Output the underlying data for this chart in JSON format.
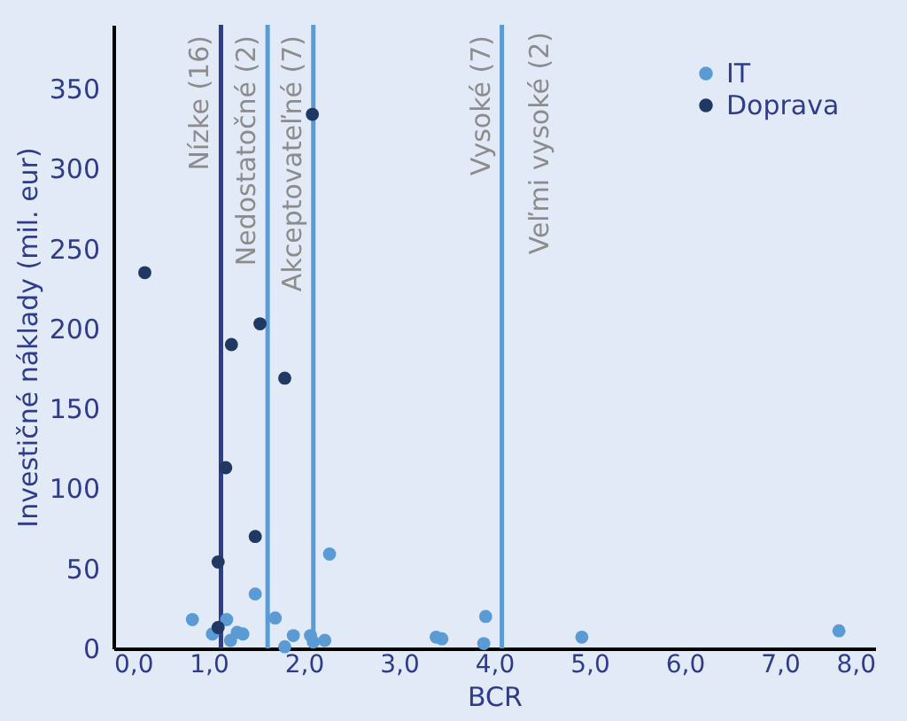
{
  "chart_data": {
    "type": "scatter",
    "xlabel": "BCR",
    "ylabel": "Investičné náklady (mil. eur)",
    "xlim": [
      0,
      8
    ],
    "ylim": [
      0,
      390
    ],
    "xticks": [
      {
        "value": 0,
        "label": "0,0"
      },
      {
        "value": 1,
        "label": "1,0"
      },
      {
        "value": 2,
        "label": "2,0"
      },
      {
        "value": 3,
        "label": "3,0"
      },
      {
        "value": 4,
        "label": "4,0"
      },
      {
        "value": 5,
        "label": "5,0"
      },
      {
        "value": 6,
        "label": "6,0"
      },
      {
        "value": 7,
        "label": "7,0"
      },
      {
        "value": 8,
        "label": "8,0"
      }
    ],
    "yticks": [
      0,
      50,
      100,
      150,
      200,
      250,
      300,
      350
    ],
    "series": [
      {
        "name": "IT",
        "color": "#5b9bd5",
        "x": [
          0.83,
          2.27,
          1.49,
          1.7,
          1.19,
          1.04,
          1.23,
          1.36,
          1.3,
          1.8,
          1.89,
          2.07,
          2.22,
          2.1,
          3.39,
          3.45,
          3.91,
          3.89,
          4.92,
          7.62
        ],
        "values": [
          18,
          59,
          34,
          19,
          18,
          9,
          5,
          9,
          10,
          1,
          8,
          8,
          5,
          4,
          7,
          6,
          20,
          3,
          7,
          11
        ]
      },
      {
        "name": "Doprava",
        "color": "#203864",
        "x": [
          0.33,
          2.09,
          1.54,
          1.24,
          1.8,
          1.18,
          1.49,
          1.1,
          1.1
        ],
        "values": [
          235,
          334,
          203,
          190,
          169,
          113,
          70,
          54,
          13
        ]
      }
    ],
    "ref_lines": [
      {
        "axis": "x",
        "value": 1.13,
        "label": "Nízke (16)",
        "color": "#2f3c8c"
      },
      {
        "axis": "x",
        "value": 1.62,
        "label": "Nedostatočné (2)",
        "color": "#5b9bd5"
      },
      {
        "axis": "x",
        "value": 2.1,
        "label": "Akceptovateľné (7)",
        "color": "#5b9bd5"
      },
      {
        "axis": "x",
        "value": 4.08,
        "label": "Vysoké (7)",
        "color": "#5b9bd5"
      }
    ],
    "annotations": [
      "Veľmi vysoké (2)"
    ],
    "marker": "circle",
    "grid": false,
    "legend": "top right"
  }
}
